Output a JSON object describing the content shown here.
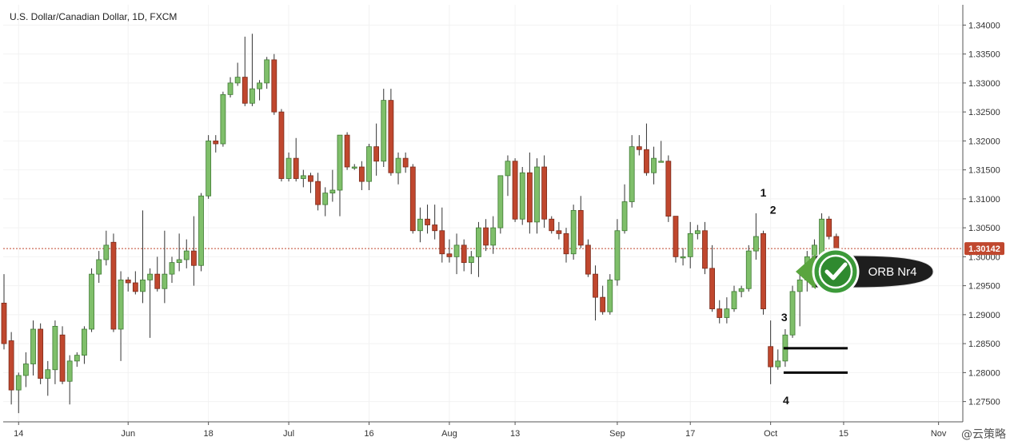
{
  "chart_data": {
    "type": "candlestick",
    "title": "U.S. Dollar/Canadian Dollar, 1D, FXCM",
    "ylim": [
      1.2715,
      1.3435
    ],
    "y_ticks": [
      "1.34000",
      "1.33500",
      "1.33000",
      "1.32500",
      "1.32000",
      "1.31500",
      "1.31000",
      "1.30500",
      "1.30000",
      "1.29500",
      "1.29000",
      "1.28500",
      "1.28000",
      "1.27500"
    ],
    "x_ticks": [
      "14",
      "Jun",
      "18",
      "Jul",
      "16",
      "Aug",
      "13",
      "Sep",
      "17",
      "Oct",
      "15",
      "Nov"
    ],
    "last_price": 1.30142,
    "last_price_label": "1.30142",
    "colors": {
      "up": "#7fbf6a",
      "down": "#c0472e",
      "up_border": "#3f7a33",
      "down_border": "#7a2a1a",
      "price_line": "#c0472e"
    },
    "candles": [
      {
        "d": "May 10",
        "o": 1.292,
        "h": 1.297,
        "l": 1.284,
        "c": 1.285
      },
      {
        "d": "May 11",
        "o": 1.2855,
        "h": 1.287,
        "l": 1.2745,
        "c": 1.277
      },
      {
        "d": "May 14",
        "o": 1.277,
        "h": 1.28,
        "l": 1.273,
        "c": 1.2795
      },
      {
        "d": "May 15",
        "o": 1.2795,
        "h": 1.2835,
        "l": 1.2775,
        "c": 1.2815
      },
      {
        "d": "May 16",
        "o": 1.2815,
        "h": 1.289,
        "l": 1.2795,
        "c": 1.2875
      },
      {
        "d": "May 17",
        "o": 1.2875,
        "h": 1.2885,
        "l": 1.278,
        "c": 1.279
      },
      {
        "d": "May 18",
        "o": 1.279,
        "h": 1.282,
        "l": 1.276,
        "c": 1.2805
      },
      {
        "d": "May 21",
        "o": 1.2805,
        "h": 1.289,
        "l": 1.278,
        "c": 1.288
      },
      {
        "d": "May 22",
        "o": 1.2865,
        "h": 1.288,
        "l": 1.278,
        "c": 1.2785
      },
      {
        "d": "May 23",
        "o": 1.2785,
        "h": 1.283,
        "l": 1.2745,
        "c": 1.282
      },
      {
        "d": "May 24",
        "o": 1.282,
        "h": 1.2835,
        "l": 1.281,
        "c": 1.283
      },
      {
        "d": "May 25",
        "o": 1.283,
        "h": 1.288,
        "l": 1.2815,
        "c": 1.2875
      },
      {
        "d": "May 28",
        "o": 1.2875,
        "h": 1.298,
        "l": 1.287,
        "c": 1.297
      },
      {
        "d": "May 29",
        "o": 1.297,
        "h": 1.301,
        "l": 1.2955,
        "c": 1.2995
      },
      {
        "d": "May 30",
        "o": 1.2995,
        "h": 1.3045,
        "l": 1.2985,
        "c": 1.302
      },
      {
        "d": "May 31",
        "o": 1.3025,
        "h": 1.304,
        "l": 1.287,
        "c": 1.2875
      },
      {
        "d": "Jun 1",
        "o": 1.2875,
        "h": 1.2975,
        "l": 1.282,
        "c": 1.296
      },
      {
        "d": "Jun 4",
        "o": 1.296,
        "h": 1.2965,
        "l": 1.294,
        "c": 1.2955
      },
      {
        "d": "Jun 5",
        "o": 1.2955,
        "h": 1.2975,
        "l": 1.2935,
        "c": 1.294
      },
      {
        "d": "Jun 6",
        "o": 1.294,
        "h": 1.308,
        "l": 1.292,
        "c": 1.296
      },
      {
        "d": "Jun 7",
        "o": 1.296,
        "h": 1.298,
        "l": 1.286,
        "c": 1.297
      },
      {
        "d": "Jun 8",
        "o": 1.297,
        "h": 1.3,
        "l": 1.294,
        "c": 1.2945
      },
      {
        "d": "Jun 11",
        "o": 1.2945,
        "h": 1.3045,
        "l": 1.292,
        "c": 1.297
      },
      {
        "d": "Jun 12",
        "o": 1.297,
        "h": 1.3,
        "l": 1.2955,
        "c": 1.299
      },
      {
        "d": "Jun 13",
        "o": 1.299,
        "h": 1.304,
        "l": 1.2975,
        "c": 1.2995
      },
      {
        "d": "Jun 14",
        "o": 1.2995,
        "h": 1.303,
        "l": 1.298,
        "c": 1.301
      },
      {
        "d": "Jun 15",
        "o": 1.301,
        "h": 1.307,
        "l": 1.295,
        "c": 1.2985
      },
      {
        "d": "Jun 18",
        "o": 1.2985,
        "h": 1.311,
        "l": 1.2975,
        "c": 1.3105
      },
      {
        "d": "Jun 19",
        "o": 1.3105,
        "h": 1.321,
        "l": 1.31,
        "c": 1.32
      },
      {
        "d": "Jun 20",
        "o": 1.32,
        "h": 1.321,
        "l": 1.318,
        "c": 1.3195
      },
      {
        "d": "Jun 21",
        "o": 1.3195,
        "h": 1.3285,
        "l": 1.319,
        "c": 1.328
      },
      {
        "d": "Jun 22",
        "o": 1.328,
        "h": 1.331,
        "l": 1.3275,
        "c": 1.33
      },
      {
        "d": "Jun 25",
        "o": 1.33,
        "h": 1.3335,
        "l": 1.3295,
        "c": 1.331
      },
      {
        "d": "Jun 26",
        "o": 1.331,
        "h": 1.338,
        "l": 1.326,
        "c": 1.3265
      },
      {
        "d": "Jun 27",
        "o": 1.3265,
        "h": 1.3385,
        "l": 1.326,
        "c": 1.329
      },
      {
        "d": "Jun 28",
        "o": 1.329,
        "h": 1.3305,
        "l": 1.327,
        "c": 1.33
      },
      {
        "d": "Jun 29",
        "o": 1.33,
        "h": 1.3345,
        "l": 1.329,
        "c": 1.334
      },
      {
        "d": "Jul 2",
        "o": 1.334,
        "h": 1.335,
        "l": 1.3245,
        "c": 1.325
      },
      {
        "d": "Jul 3",
        "o": 1.325,
        "h": 1.3255,
        "l": 1.313,
        "c": 1.3135
      },
      {
        "d": "Jul 4",
        "o": 1.3135,
        "h": 1.318,
        "l": 1.313,
        "c": 1.317
      },
      {
        "d": "Jul 5",
        "o": 1.317,
        "h": 1.3205,
        "l": 1.313,
        "c": 1.3135
      },
      {
        "d": "Jul 6",
        "o": 1.3135,
        "h": 1.315,
        "l": 1.312,
        "c": 1.314
      },
      {
        "d": "Jul 9",
        "o": 1.314,
        "h": 1.3145,
        "l": 1.311,
        "c": 1.313
      },
      {
        "d": "Jul 10",
        "o": 1.313,
        "h": 1.3145,
        "l": 1.308,
        "c": 1.309
      },
      {
        "d": "Jul 11",
        "o": 1.309,
        "h": 1.312,
        "l": 1.307,
        "c": 1.311
      },
      {
        "d": "Jul 12",
        "o": 1.311,
        "h": 1.315,
        "l": 1.3095,
        "c": 1.3115
      },
      {
        "d": "Jul 13",
        "o": 1.3115,
        "h": 1.321,
        "l": 1.307,
        "c": 1.321
      },
      {
        "d": "Jul 16",
        "o": 1.321,
        "h": 1.3215,
        "l": 1.315,
        "c": 1.3155
      },
      {
        "d": "Jul 17",
        "o": 1.3155,
        "h": 1.316,
        "l": 1.315,
        "c": 1.3155
      },
      {
        "d": "Jul 18",
        "o": 1.3155,
        "h": 1.3165,
        "l": 1.3115,
        "c": 1.313
      },
      {
        "d": "Jul 19",
        "o": 1.313,
        "h": 1.3195,
        "l": 1.3115,
        "c": 1.319
      },
      {
        "d": "Jul 20",
        "o": 1.319,
        "h": 1.323,
        "l": 1.314,
        "c": 1.3165
      },
      {
        "d": "Jul 23",
        "o": 1.3165,
        "h": 1.329,
        "l": 1.3155,
        "c": 1.327
      },
      {
        "d": "Jul 24",
        "o": 1.327,
        "h": 1.329,
        "l": 1.314,
        "c": 1.3145
      },
      {
        "d": "Jul 25",
        "o": 1.3145,
        "h": 1.318,
        "l": 1.3125,
        "c": 1.317
      },
      {
        "d": "Jul 26",
        "o": 1.317,
        "h": 1.318,
        "l": 1.3145,
        "c": 1.3155
      },
      {
        "d": "Jul 27",
        "o": 1.3155,
        "h": 1.316,
        "l": 1.304,
        "c": 1.3045
      },
      {
        "d": "Jul 30",
        "o": 1.3045,
        "h": 1.3085,
        "l": 1.3025,
        "c": 1.3065
      },
      {
        "d": "Jul 31",
        "o": 1.3065,
        "h": 1.309,
        "l": 1.304,
        "c": 1.3055
      },
      {
        "d": "Aug 1",
        "o": 1.3055,
        "h": 1.309,
        "l": 1.303,
        "c": 1.3045
      },
      {
        "d": "Aug 2",
        "o": 1.3045,
        "h": 1.3085,
        "l": 1.299,
        "c": 1.3005
      },
      {
        "d": "Aug 3",
        "o": 1.3005,
        "h": 1.303,
        "l": 1.299,
        "c": 1.3
      },
      {
        "d": "Aug 6",
        "o": 1.3,
        "h": 1.304,
        "l": 1.297,
        "c": 1.302
      },
      {
        "d": "Aug 7",
        "o": 1.302,
        "h": 1.303,
        "l": 1.2975,
        "c": 1.299
      },
      {
        "d": "Aug 8",
        "o": 1.299,
        "h": 1.301,
        "l": 1.297,
        "c": 1.3
      },
      {
        "d": "Aug 9",
        "o": 1.3,
        "h": 1.306,
        "l": 1.2965,
        "c": 1.305
      },
      {
        "d": "Aug 10",
        "o": 1.305,
        "h": 1.3065,
        "l": 1.301,
        "c": 1.302
      },
      {
        "d": "Aug 13",
        "o": 1.302,
        "h": 1.307,
        "l": 1.3005,
        "c": 1.305
      },
      {
        "d": "Aug 14",
        "o": 1.305,
        "h": 1.314,
        "l": 1.304,
        "c": 1.314
      },
      {
        "d": "Aug 15",
        "o": 1.314,
        "h": 1.3175,
        "l": 1.3105,
        "c": 1.3165
      },
      {
        "d": "Aug 16",
        "o": 1.3165,
        "h": 1.317,
        "l": 1.306,
        "c": 1.3065
      },
      {
        "d": "Aug 17",
        "o": 1.3065,
        "h": 1.3155,
        "l": 1.3055,
        "c": 1.3145
      },
      {
        "d": "Aug 20",
        "o": 1.3145,
        "h": 1.318,
        "l": 1.304,
        "c": 1.306
      },
      {
        "d": "Aug 21",
        "o": 1.306,
        "h": 1.317,
        "l": 1.304,
        "c": 1.3155
      },
      {
        "d": "Aug 22",
        "o": 1.3155,
        "h": 1.3175,
        "l": 1.305,
        "c": 1.3065
      },
      {
        "d": "Aug 23",
        "o": 1.3065,
        "h": 1.307,
        "l": 1.304,
        "c": 1.3045
      },
      {
        "d": "Aug 24",
        "o": 1.3045,
        "h": 1.306,
        "l": 1.303,
        "c": 1.304
      },
      {
        "d": "Aug 27",
        "o": 1.304,
        "h": 1.305,
        "l": 1.299,
        "c": 1.3005
      },
      {
        "d": "Aug 28",
        "o": 1.3005,
        "h": 1.309,
        "l": 1.2995,
        "c": 1.308
      },
      {
        "d": "Aug 29",
        "o": 1.308,
        "h": 1.3105,
        "l": 1.3015,
        "c": 1.302
      },
      {
        "d": "Aug 30",
        "o": 1.302,
        "h": 1.303,
        "l": 1.2965,
        "c": 1.297
      },
      {
        "d": "Aug 31",
        "o": 1.297,
        "h": 1.2985,
        "l": 1.289,
        "c": 1.293
      },
      {
        "d": "Sep 3",
        "o": 1.293,
        "h": 1.295,
        "l": 1.29,
        "c": 1.2905
      },
      {
        "d": "Sep 4",
        "o": 1.2905,
        "h": 1.297,
        "l": 1.29,
        "c": 1.296
      },
      {
        "d": "Sep 5",
        "o": 1.296,
        "h": 1.3065,
        "l": 1.295,
        "c": 1.3045
      },
      {
        "d": "Sep 6",
        "o": 1.3045,
        "h": 1.3125,
        "l": 1.304,
        "c": 1.3095
      },
      {
        "d": "Sep 7",
        "o": 1.3095,
        "h": 1.321,
        "l": 1.3085,
        "c": 1.319
      },
      {
        "d": "Sep 10",
        "o": 1.319,
        "h": 1.321,
        "l": 1.3175,
        "c": 1.3185
      },
      {
        "d": "Sep 11",
        "o": 1.3185,
        "h": 1.323,
        "l": 1.314,
        "c": 1.3145
      },
      {
        "d": "Sep 12",
        "o": 1.3145,
        "h": 1.319,
        "l": 1.3125,
        "c": 1.317
      },
      {
        "d": "Sep 13",
        "o": 1.3165,
        "h": 1.32,
        "l": 1.3165,
        "c": 1.3165
      },
      {
        "d": "Sep 14",
        "o": 1.3165,
        "h": 1.3175,
        "l": 1.306,
        "c": 1.307
      },
      {
        "d": "Sep 17",
        "o": 1.307,
        "h": 1.307,
        "l": 1.299,
        "c": 1.3
      },
      {
        "d": "Sep 18",
        "o": 1.3,
        "h": 1.3015,
        "l": 1.2985,
        "c": 1.3
      },
      {
        "d": "Sep 19",
        "o": 1.3,
        "h": 1.306,
        "l": 1.298,
        "c": 1.304
      },
      {
        "d": "Sep 20",
        "o": 1.304,
        "h": 1.3055,
        "l": 1.303,
        "c": 1.3045
      },
      {
        "d": "Sep 21",
        "o": 1.3045,
        "h": 1.306,
        "l": 1.297,
        "c": 1.298
      },
      {
        "d": "Sep 24",
        "o": 1.298,
        "h": 1.302,
        "l": 1.2905,
        "c": 1.291
      },
      {
        "d": "Sep 25",
        "o": 1.291,
        "h": 1.2925,
        "l": 1.2885,
        "c": 1.2895
      },
      {
        "d": "Sep 26",
        "o": 1.2895,
        "h": 1.293,
        "l": 1.2885,
        "c": 1.291
      },
      {
        "d": "Sep 27",
        "o": 1.291,
        "h": 1.295,
        "l": 1.2905,
        "c": 1.294
      },
      {
        "d": "Sep 28",
        "o": 1.294,
        "h": 1.295,
        "l": 1.293,
        "c": 1.2945
      },
      {
        "d": "Oct 1",
        "o": 1.2945,
        "h": 1.302,
        "l": 1.294,
        "c": 1.301
      },
      {
        "d": "Oct 2",
        "o": 1.301,
        "h": 1.3075,
        "l": 1.2995,
        "c": 1.3035
      },
      {
        "d": "Oct 3",
        "o": 1.304,
        "h": 1.3045,
        "l": 1.29,
        "c": 1.291
      },
      {
        "d": "Oct 4",
        "o": 1.2845,
        "h": 1.289,
        "l": 1.278,
        "c": 1.281
      },
      {
        "d": "Oct 5",
        "o": 1.281,
        "h": 1.284,
        "l": 1.2805,
        "c": 1.282
      },
      {
        "d": "Oct 8",
        "o": 1.282,
        "h": 1.2875,
        "l": 1.281,
        "c": 1.2865
      },
      {
        "d": "Oct 9",
        "o": 1.2865,
        "h": 1.295,
        "l": 1.286,
        "c": 1.294
      },
      {
        "d": "Oct 10",
        "o": 1.294,
        "h": 1.2975,
        "l": 1.288,
        "c": 1.296
      },
      {
        "d": "Oct 11",
        "o": 1.296,
        "h": 1.301,
        "l": 1.294,
        "c": 1.3
      },
      {
        "d": "Oct 12",
        "o": 1.3,
        "h": 1.303,
        "l": 1.297,
        "c": 1.302
      },
      {
        "d": "Oct 15",
        "o": 1.3,
        "h": 1.3075,
        "l": 1.2995,
        "c": 1.3065
      },
      {
        "d": "Oct 16",
        "o": 1.3065,
        "h": 1.307,
        "l": 1.303,
        "c": 1.3035
      },
      {
        "d": "Oct 17",
        "o": 1.3035,
        "h": 1.304,
        "l": 1.301,
        "c": 1.3015
      }
    ],
    "annotations": {
      "labels": [
        {
          "text": "1",
          "candle": 104,
          "price": 1.3085
        },
        {
          "text": "2",
          "candle": 105,
          "price": 1.3055
        },
        {
          "text": "3",
          "candle": 106,
          "price": 1.29
        },
        {
          "text": "4",
          "candle": 107,
          "price": 1.277
        }
      ],
      "levels": [
        {
          "price": 1.2842,
          "from_candle": 107,
          "to_x_price_end": "right"
        },
        {
          "price": 1.28,
          "from_candle": 107,
          "to_x_price_end": "right"
        }
      ],
      "badge": {
        "text": "ORB Nr4",
        "icon": "checkmark-icon"
      }
    }
  },
  "watermark": "@云策略"
}
